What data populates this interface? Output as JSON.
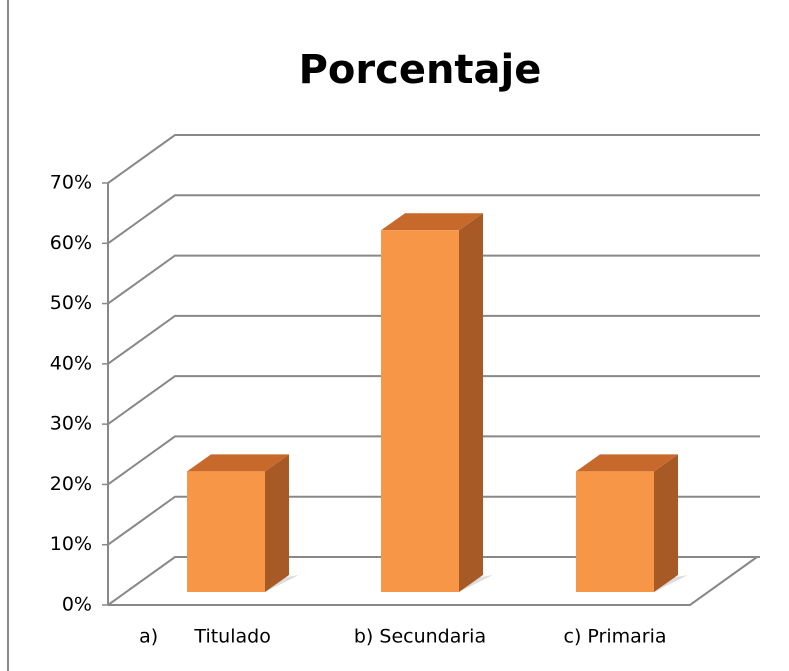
{
  "chart_data": {
    "type": "bar3d",
    "title": "Porcentaje",
    "categories": [
      "a)      Titulado",
      "b) Secundaria",
      "c) Primaria"
    ],
    "values": [
      20,
      60,
      20
    ],
    "color": "#f79646",
    "ylim": [
      0,
      70
    ],
    "yticks": [
      {
        "value": 0,
        "label": "0%"
      },
      {
        "value": 10,
        "label": "10%"
      },
      {
        "value": 20,
        "label": "20%"
      },
      {
        "value": 30,
        "label": "30%"
      },
      {
        "value": 40,
        "label": "40%"
      },
      {
        "value": 50,
        "label": "50%"
      },
      {
        "value": 60,
        "label": "60%"
      },
      {
        "value": 70,
        "label": "70%"
      }
    ],
    "grid": true
  }
}
